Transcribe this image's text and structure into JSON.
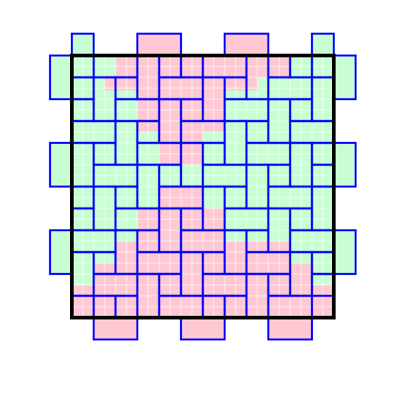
{
  "figure": {
    "grid_columns": 12,
    "grid_rows": 12,
    "colors": {
      "green_fill": "#c8ffd2",
      "pink_fill": "#ffc8d2",
      "cell_grid": "#ffffff",
      "piece_outline": "#0000ff",
      "frame": "#000000",
      "background": "#ffffff"
    }
  }
}
